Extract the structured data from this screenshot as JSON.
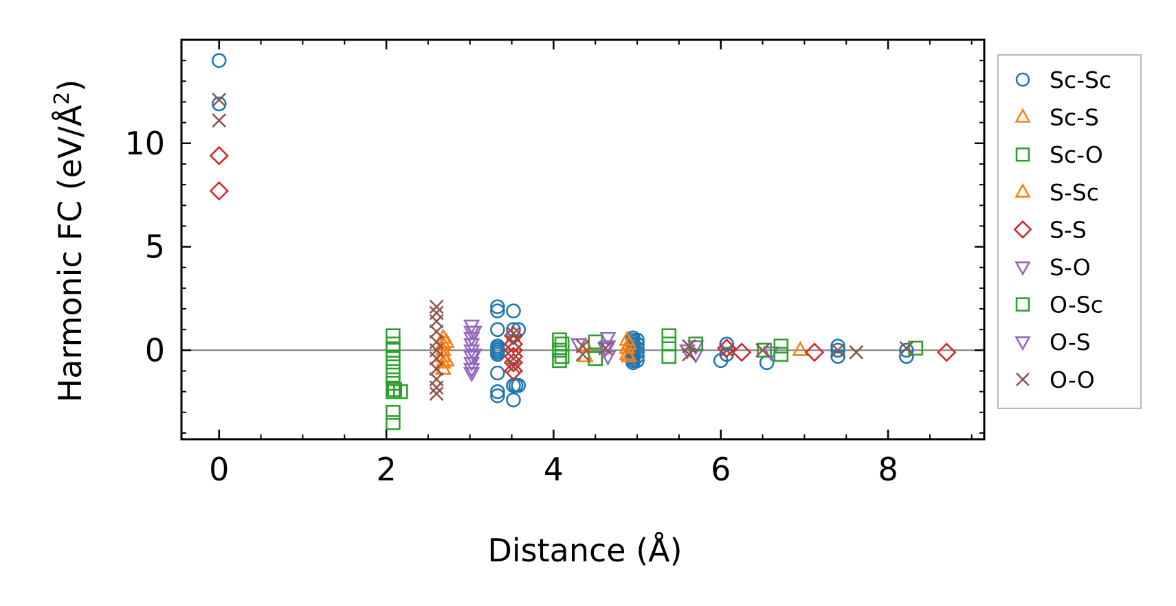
{
  "chart_data": {
    "type": "scatter",
    "xlabel": "Distance (Å)",
    "ylabel_main": "Harmonic FC (eV/Å",
    "ylabel_sup": "2",
    "ylabel_close": ")",
    "xlim": [
      -0.45,
      9.15
    ],
    "ylim": [
      -4.3,
      15.0
    ],
    "xticks": [
      0,
      2,
      4,
      6,
      8
    ],
    "xtick_labels": [
      "0",
      "2",
      "4",
      "6",
      "8"
    ],
    "yticks": [
      0,
      5,
      10
    ],
    "ytick_labels": [
      "0",
      "5",
      "10"
    ],
    "zero_line": true,
    "grid": false,
    "legend_placement": "outside-right",
    "series": [
      {
        "name": "Sc-Sc",
        "marker": "circle",
        "color": "#1f77b4",
        "points": [
          [
            0,
            14.0
          ],
          [
            0,
            11.9
          ],
          [
            3.33,
            2.1
          ],
          [
            3.33,
            1.9
          ],
          [
            3.33,
            1.0
          ],
          [
            3.33,
            0.2
          ],
          [
            3.33,
            0.1
          ],
          [
            3.33,
            0.0
          ],
          [
            3.33,
            -0.1
          ],
          [
            3.33,
            -0.2
          ],
          [
            3.33,
            -1.1
          ],
          [
            3.33,
            -2.0
          ],
          [
            3.33,
            -2.2
          ],
          [
            3.52,
            1.9
          ],
          [
            3.52,
            1.0
          ],
          [
            3.52,
            -1.7
          ],
          [
            3.52,
            -2.4
          ],
          [
            3.55,
            -1.7
          ],
          [
            3.58,
            1.0
          ],
          [
            3.58,
            -1.7
          ],
          [
            4.95,
            0.6
          ],
          [
            4.95,
            0.5
          ],
          [
            4.95,
            0.4
          ],
          [
            4.95,
            0.3
          ],
          [
            4.95,
            0.2
          ],
          [
            4.95,
            0.1
          ],
          [
            4.95,
            0.0
          ],
          [
            4.95,
            -0.1
          ],
          [
            4.95,
            -0.2
          ],
          [
            4.95,
            -0.3
          ],
          [
            4.95,
            -0.4
          ],
          [
            4.95,
            -0.5
          ],
          [
            4.95,
            -0.6
          ],
          [
            5.0,
            0.5
          ],
          [
            5.0,
            0.3
          ],
          [
            5.0,
            0.1
          ],
          [
            5.0,
            -0.1
          ],
          [
            5.0,
            -0.3
          ],
          [
            5.0,
            -0.5
          ],
          [
            6.07,
            0.3
          ],
          [
            6.07,
            -0.2
          ],
          [
            6.0,
            -0.5
          ],
          [
            6.55,
            -0.6
          ],
          [
            7.4,
            0.2
          ],
          [
            7.4,
            0.0
          ],
          [
            7.4,
            -0.3
          ],
          [
            8.22,
            0.0
          ],
          [
            8.22,
            -0.3
          ]
        ]
      },
      {
        "name": "Sc-S",
        "marker": "triangle-up",
        "color": "#ff7f0e",
        "points": [
          [
            2.68,
            0.6
          ],
          [
            2.68,
            0.3
          ],
          [
            2.68,
            0.0
          ],
          [
            2.68,
            -0.3
          ],
          [
            2.68,
            -0.6
          ],
          [
            2.68,
            -0.9
          ],
          [
            4.38,
            0.2
          ],
          [
            4.38,
            -0.3
          ],
          [
            4.88,
            0.5
          ],
          [
            4.88,
            0.1
          ],
          [
            4.88,
            -0.2
          ],
          [
            6.95,
            0.0
          ]
        ]
      },
      {
        "name": "Sc-O",
        "marker": "square",
        "color": "#2ca02c",
        "points": [
          [
            2.08,
            0.7
          ],
          [
            2.08,
            0.3
          ],
          [
            2.08,
            0.0
          ],
          [
            2.08,
            -0.4
          ],
          [
            2.08,
            -0.8
          ],
          [
            2.08,
            -1.2
          ],
          [
            2.08,
            -1.6
          ],
          [
            2.08,
            -2.0
          ],
          [
            2.08,
            -3.0
          ],
          [
            2.08,
            -3.5
          ],
          [
            2.17,
            -2.0
          ],
          [
            4.07,
            0.5
          ],
          [
            4.07,
            0.0
          ],
          [
            4.07,
            -0.5
          ],
          [
            4.5,
            0.4
          ],
          [
            4.5,
            -0.4
          ],
          [
            5.38,
            0.7
          ],
          [
            5.38,
            0.3
          ],
          [
            5.38,
            -0.3
          ],
          [
            6.52,
            0.0
          ],
          [
            8.33,
            0.1
          ]
        ]
      },
      {
        "name": "S-Sc",
        "marker": "triangle-up",
        "color": "#ff7f0e",
        "points": [
          [
            2.72,
            0.4
          ],
          [
            2.72,
            -0.5
          ],
          [
            4.9,
            0.3
          ],
          [
            4.9,
            -0.3
          ]
        ]
      },
      {
        "name": "S-S",
        "marker": "diamond",
        "color": "#d62728",
        "points": [
          [
            0,
            9.4
          ],
          [
            0,
            7.7
          ],
          [
            3.52,
            0.7
          ],
          [
            3.52,
            0.3
          ],
          [
            3.52,
            0.0
          ],
          [
            3.52,
            -0.3
          ],
          [
            3.52,
            -0.6
          ],
          [
            3.52,
            -1.0
          ],
          [
            6.07,
            0.1
          ],
          [
            6.25,
            -0.1
          ],
          [
            7.12,
            -0.1
          ],
          [
            8.7,
            -0.1
          ]
        ]
      },
      {
        "name": "S-O",
        "marker": "triangle-down",
        "color": "#9467bd",
        "points": [
          [
            3.02,
            1.2
          ],
          [
            3.02,
            0.9
          ],
          [
            3.02,
            0.6
          ],
          [
            3.02,
            0.3
          ],
          [
            3.02,
            0.0
          ],
          [
            3.02,
            -0.3
          ],
          [
            3.02,
            -0.6
          ],
          [
            3.02,
            -0.9
          ],
          [
            3.02,
            -1.1
          ],
          [
            4.3,
            0.3
          ],
          [
            4.65,
            0.6
          ],
          [
            4.65,
            0.2
          ],
          [
            4.65,
            -0.3
          ],
          [
            5.7,
            0.2
          ],
          [
            5.7,
            -0.2
          ],
          [
            6.6,
            -0.1
          ]
        ]
      },
      {
        "name": "O-Sc",
        "marker": "square",
        "color": "#2ca02c",
        "points": [
          [
            2.1,
            -1.9
          ],
          [
            4.1,
            0.3
          ],
          [
            4.1,
            -0.3
          ],
          [
            5.7,
            0.3
          ],
          [
            6.72,
            0.2
          ],
          [
            6.72,
            -0.2
          ]
        ]
      },
      {
        "name": "O-S",
        "marker": "triangle-down",
        "color": "#9467bd",
        "points": [
          [
            3.05,
            0.9
          ],
          [
            3.05,
            -0.2
          ],
          [
            4.62,
            0.1
          ],
          [
            5.6,
            0.0
          ]
        ]
      },
      {
        "name": "O-O",
        "marker": "x",
        "color": "#8c564b",
        "points": [
          [
            0,
            12.1
          ],
          [
            0,
            11.1
          ],
          [
            2.6,
            2.1
          ],
          [
            2.6,
            1.8
          ],
          [
            2.6,
            1.4
          ],
          [
            2.6,
            0.9
          ],
          [
            2.6,
            0.4
          ],
          [
            2.6,
            0.0
          ],
          [
            2.6,
            -0.4
          ],
          [
            2.6,
            -0.9
          ],
          [
            2.6,
            -1.4
          ],
          [
            2.6,
            -1.8
          ],
          [
            2.6,
            -2.1
          ],
          [
            3.52,
            0.8
          ],
          [
            3.52,
            0.4
          ],
          [
            3.52,
            -0.4
          ],
          [
            3.52,
            -0.8
          ],
          [
            4.35,
            0.2
          ],
          [
            4.35,
            -0.2
          ],
          [
            4.62,
            0.1
          ],
          [
            5.62,
            0.2
          ],
          [
            5.62,
            -0.2
          ],
          [
            6.07,
            0.0
          ],
          [
            6.5,
            0.0
          ],
          [
            7.4,
            0.0
          ],
          [
            7.62,
            -0.1
          ],
          [
            8.22,
            0.1
          ]
        ]
      }
    ]
  }
}
